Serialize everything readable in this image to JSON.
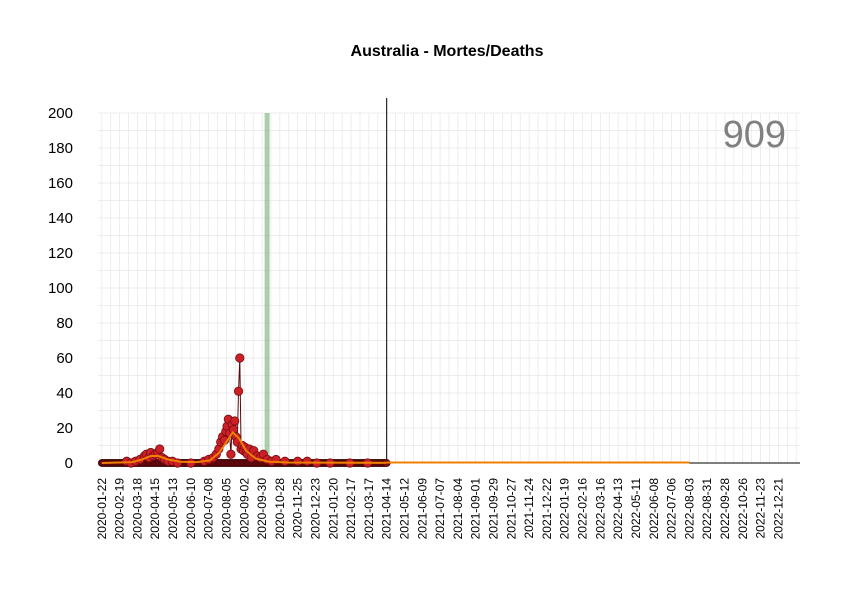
{
  "chart_data": {
    "type": "scatter",
    "title": "Australia - Mortes/Deaths",
    "total_label": "909",
    "xlabel": "",
    "ylabel": "",
    "ylim": [
      0,
      200
    ],
    "y_ticks": [
      0,
      20,
      40,
      60,
      80,
      100,
      120,
      140,
      160,
      180,
      200
    ],
    "x_start": "2020-01-22",
    "x_end": "2022-12-21",
    "x_tick_labels": [
      "2020-01-22",
      "2020-02-19",
      "2020-03-18",
      "2020-04-15",
      "2020-05-13",
      "2020-06-10",
      "2020-07-08",
      "2020-08-05",
      "2020-09-02",
      "2020-09-30",
      "2020-10-28",
      "2020-11-25",
      "2020-12-23",
      "2021-01-20",
      "2021-02-17",
      "2021-03-17",
      "2021-04-14",
      "2021-05-12",
      "2021-06-09",
      "2021-07-07",
      "2021-08-04",
      "2021-09-01",
      "2021-09-29",
      "2021-10-27",
      "2021-11-24",
      "2021-12-22",
      "2022-01-19",
      "2022-02-16",
      "2022-03-16",
      "2022-04-13",
      "2022-05-11",
      "2022-06-08",
      "2022-07-06",
      "2022-08-03",
      "2022-08-31",
      "2022-09-28",
      "2022-10-26",
      "2022-11-23",
      "2022-12-21"
    ],
    "grid": true,
    "vline_date": "2021-04-14",
    "highlight_band": {
      "start": "2020-10-04",
      "end": "2020-10-07",
      "color": "#8fbf8f"
    },
    "colors": {
      "points": "#cc2027",
      "points_stroke": "#7a0c12",
      "stem": "#5a0a0a",
      "smooth": "#f08000",
      "forecast": "#f08000"
    },
    "series": [
      {
        "values": [
          [
            "2020-03-01",
            1
          ],
          [
            "2020-03-08",
            0
          ],
          [
            "2020-03-15",
            1
          ],
          [
            "2020-03-22",
            2
          ],
          [
            "2020-03-29",
            4
          ],
          [
            "2020-04-01",
            5
          ],
          [
            "2020-04-05",
            3
          ],
          [
            "2020-04-08",
            6
          ],
          [
            "2020-04-12",
            4
          ],
          [
            "2020-04-15",
            5
          ],
          [
            "2020-04-19",
            6
          ],
          [
            "2020-04-22",
            8
          ],
          [
            "2020-04-26",
            3
          ],
          [
            "2020-04-30",
            2
          ],
          [
            "2020-05-05",
            1
          ],
          [
            "2020-05-12",
            1
          ],
          [
            "2020-05-20",
            0
          ],
          [
            "2020-06-10",
            0
          ],
          [
            "2020-07-01",
            1
          ],
          [
            "2020-07-08",
            2
          ],
          [
            "2020-07-15",
            3
          ],
          [
            "2020-07-20",
            5
          ],
          [
            "2020-07-24",
            8
          ],
          [
            "2020-07-27",
            12
          ],
          [
            "2020-07-30",
            15
          ],
          [
            "2020-08-02",
            13
          ],
          [
            "2020-08-04",
            18
          ],
          [
            "2020-08-06",
            21
          ],
          [
            "2020-08-08",
            25
          ],
          [
            "2020-08-10",
            17
          ],
          [
            "2020-08-12",
            5
          ],
          [
            "2020-08-14",
            22
          ],
          [
            "2020-08-16",
            19
          ],
          [
            "2020-08-18",
            24
          ],
          [
            "2020-08-20",
            15
          ],
          [
            "2020-08-22",
            12
          ],
          [
            "2020-08-24",
            41
          ],
          [
            "2020-08-26",
            60
          ],
          [
            "2020-08-28",
            8
          ],
          [
            "2020-08-30",
            10
          ],
          [
            "2020-09-01",
            7
          ],
          [
            "2020-09-03",
            9
          ],
          [
            "2020-09-05",
            6
          ],
          [
            "2020-09-07",
            5
          ],
          [
            "2020-09-10",
            8
          ],
          [
            "2020-09-13",
            3
          ],
          [
            "2020-09-17",
            7
          ],
          [
            "2020-09-22",
            4
          ],
          [
            "2020-09-27",
            3
          ],
          [
            "2020-10-02",
            5
          ],
          [
            "2020-10-08",
            2
          ],
          [
            "2020-10-15",
            1
          ],
          [
            "2020-10-22",
            2
          ],
          [
            "2020-11-05",
            1
          ],
          [
            "2020-11-25",
            1
          ],
          [
            "2020-12-10",
            1
          ],
          [
            "2020-12-25",
            0
          ],
          [
            "2021-01-15",
            0
          ],
          [
            "2021-02-15",
            0
          ],
          [
            "2021-03-15",
            0
          ]
        ]
      }
    ],
    "smooth": [
      [
        "2020-01-22",
        0
      ],
      [
        "2020-03-10",
        0.5
      ],
      [
        "2020-03-25",
        2
      ],
      [
        "2020-04-08",
        4
      ],
      [
        "2020-04-20",
        4
      ],
      [
        "2020-05-05",
        2
      ],
      [
        "2020-05-25",
        0.7
      ],
      [
        "2020-06-20",
        0.5
      ],
      [
        "2020-07-10",
        1.5
      ],
      [
        "2020-07-25",
        6
      ],
      [
        "2020-08-05",
        12
      ],
      [
        "2020-08-15",
        17.5
      ],
      [
        "2020-08-25",
        14
      ],
      [
        "2020-09-05",
        7
      ],
      [
        "2020-09-20",
        2.5
      ],
      [
        "2020-10-10",
        0.8
      ],
      [
        "2020-11-10",
        0.3
      ],
      [
        "2021-01-01",
        0.2
      ],
      [
        "2021-04-14",
        0.1
      ]
    ],
    "forecast": [
      [
        "2021-04-14",
        0.3
      ],
      [
        "2022-08-03",
        0.3
      ]
    ]
  }
}
